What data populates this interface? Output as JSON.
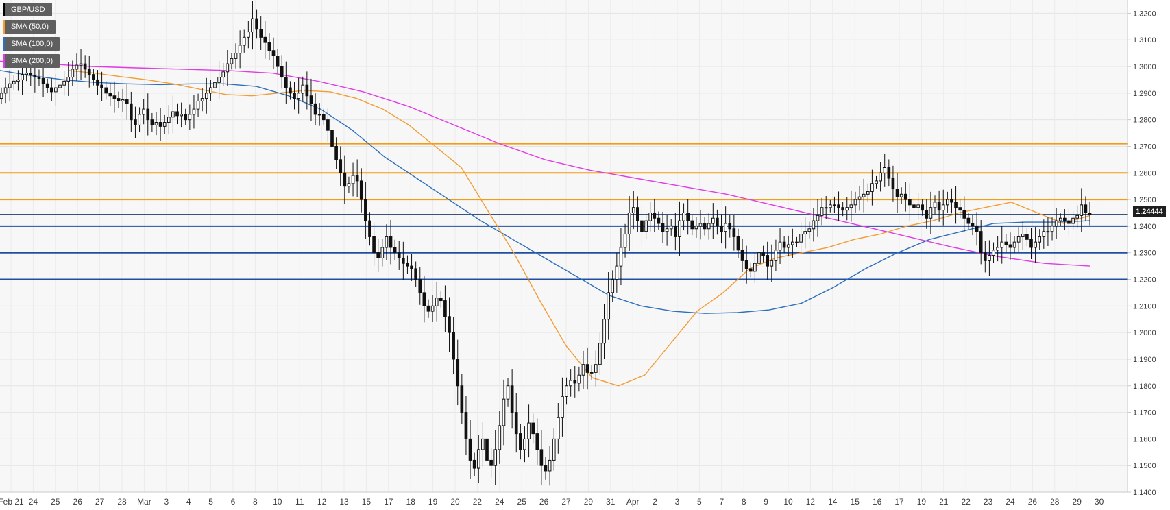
{
  "chart_data": {
    "type": "candlestick",
    "symbol": "GBP/USD",
    "ylim": [
      1.14,
      1.325
    ],
    "y_ticks": [
      "1.3200",
      "1.3100",
      "1.3000",
      "1.2900",
      "1.2800",
      "1.2700",
      "1.2600",
      "1.2500",
      "1.2400",
      "1.2300",
      "1.2200",
      "1.2100",
      "1.2000",
      "1.1900",
      "1.1800",
      "1.1700",
      "1.1600",
      "1.1500",
      "1.1400"
    ],
    "x_ticks": [
      "Feb 21",
      "24",
      "25",
      "26",
      "27",
      "28",
      "Mar",
      "3",
      "4",
      "5",
      "6",
      "8",
      "10",
      "11",
      "12",
      "13",
      "15",
      "17",
      "18",
      "19",
      "20",
      "22",
      "24",
      "25",
      "26",
      "27",
      "29",
      "31",
      "Apr",
      "2",
      "3",
      "5",
      "7",
      "8",
      "9",
      "10",
      "12",
      "14",
      "15",
      "16",
      "17",
      "19",
      "21",
      "22",
      "23",
      "24",
      "26",
      "28",
      "29",
      "30"
    ],
    "grid": true,
    "last_price": "1.24444",
    "legend": [
      {
        "label": "GBP/USD",
        "color": "#000000"
      },
      {
        "label": "SMA (50,0)",
        "color": "#f39c33"
      },
      {
        "label": "SMA (100,0)",
        "color": "#2f6fba"
      },
      {
        "label": "SMA (200,0)",
        "color": "#e03be6"
      }
    ],
    "horizontal_levels": [
      {
        "value": 1.271,
        "color": "#f39c12"
      },
      {
        "value": 1.26,
        "color": "#f39c12"
      },
      {
        "value": 1.25,
        "color": "#f39c12"
      },
      {
        "value": 1.24,
        "color": "#1f4fa3"
      },
      {
        "value": 1.23,
        "color": "#1f4fa3"
      },
      {
        "value": 1.22,
        "color": "#1f4fa3"
      }
    ],
    "closes": [
      1.29,
      1.292,
      1.2935,
      1.2945,
      1.295,
      1.297,
      1.2975,
      1.2968,
      1.296,
      1.2955,
      1.2935,
      1.292,
      1.2905,
      1.292,
      1.293,
      1.2945,
      1.296,
      1.299,
      1.3005,
      1.301,
      1.299,
      1.297,
      1.295,
      1.293,
      1.292,
      1.29,
      1.289,
      1.288,
      1.287,
      1.2875,
      1.286,
      1.28,
      1.278,
      1.282,
      1.284,
      1.28,
      1.278,
      1.279,
      1.2775,
      1.279,
      1.281,
      1.283,
      1.2815,
      1.282,
      1.28,
      1.282,
      1.284,
      1.287,
      1.288,
      1.29,
      1.292,
      1.294,
      1.296,
      1.298,
      1.301,
      1.303,
      1.305,
      1.308,
      1.311,
      1.313,
      1.318,
      1.314,
      1.311,
      1.309,
      1.306,
      1.304,
      1.3,
      1.296,
      1.292,
      1.29,
      1.288,
      1.29,
      1.293,
      1.289,
      1.286,
      1.282,
      1.282,
      1.28,
      1.276,
      1.27,
      1.265,
      1.26,
      1.255,
      1.256,
      1.259,
      1.257,
      1.25,
      1.242,
      1.236,
      1.23,
      1.228,
      1.232,
      1.236,
      1.232,
      1.23,
      1.228,
      1.226,
      1.225,
      1.224,
      1.22,
      1.215,
      1.21,
      1.208,
      1.21,
      1.213,
      1.212,
      1.206,
      1.2,
      1.19,
      1.18,
      1.17,
      1.16,
      1.152,
      1.149,
      1.156,
      1.16,
      1.152,
      1.15,
      1.156,
      1.165,
      1.175,
      1.18,
      1.17,
      1.162,
      1.156,
      1.16,
      1.166,
      1.162,
      1.156,
      1.15,
      1.148,
      1.152,
      1.16,
      1.168,
      1.176,
      1.18,
      1.182,
      1.181,
      1.184,
      1.188,
      1.185,
      1.185,
      1.188,
      1.196,
      1.205,
      1.215,
      1.22,
      1.225,
      1.232,
      1.237,
      1.245,
      1.247,
      1.242,
      1.238,
      1.242,
      1.245,
      1.243,
      1.241,
      1.238,
      1.239,
      1.24,
      1.236,
      1.242,
      1.245,
      1.242,
      1.239,
      1.24,
      1.241,
      1.239,
      1.241,
      1.243,
      1.24,
      1.238,
      1.241,
      1.239,
      1.236,
      1.231,
      1.227,
      1.224,
      1.223,
      1.226,
      1.23,
      1.229,
      1.225,
      1.227,
      1.231,
      1.234,
      1.232,
      1.233,
      1.234,
      1.234,
      1.237,
      1.238,
      1.239,
      1.242,
      1.244,
      1.247,
      1.247,
      1.248,
      1.248,
      1.247,
      1.246,
      1.247,
      1.248,
      1.25,
      1.251,
      1.252,
      1.253,
      1.256,
      1.257,
      1.26,
      1.262,
      1.258,
      1.254,
      1.251,
      1.252,
      1.25,
      1.248,
      1.247,
      1.248,
      1.246,
      1.243,
      1.247,
      1.249,
      1.246,
      1.248,
      1.25,
      1.249,
      1.247,
      1.246,
      1.243,
      1.241,
      1.24,
      1.238,
      1.23,
      1.227,
      1.229,
      1.231,
      1.232,
      1.234,
      1.233,
      1.232,
      1.234,
      1.236,
      1.237,
      1.235,
      1.232,
      1.234,
      1.236,
      1.238,
      1.238,
      1.24,
      1.242,
      1.243,
      1.242,
      1.241,
      1.243,
      1.244,
      1.248,
      1.245,
      1.2444
    ],
    "sma50": [
      1.2985,
      1.2975,
      1.2962,
      1.295,
      1.2935,
      1.2915,
      1.2895,
      1.289,
      1.29,
      1.291,
      1.2905,
      1.288,
      1.284,
      1.278,
      1.27,
      1.262,
      1.246,
      1.23,
      1.212,
      1.195,
      1.183,
      1.18,
      1.184,
      1.196,
      1.208,
      1.215,
      1.224,
      1.228,
      1.23,
      1.232,
      1.235,
      1.237,
      1.24,
      1.242,
      1.245,
      1.247,
      1.249,
      1.245,
      1.241,
      1.244
    ],
    "sma100": [
      1.2985,
      1.2965,
      1.295,
      1.294,
      1.2935,
      1.2932,
      1.2935,
      1.2935,
      1.2925,
      1.289,
      1.284,
      1.276,
      1.266,
      1.258,
      1.25,
      1.242,
      1.235,
      1.228,
      1.221,
      1.214,
      1.21,
      1.208,
      1.2072,
      1.2075,
      1.2085,
      1.211,
      1.217,
      1.224,
      1.23,
      1.235,
      1.238,
      1.241,
      1.2415,
      1.2415,
      1.242
    ],
    "sma200": [
      1.302,
      1.301,
      1.3,
      1.2995,
      1.299,
      1.2985,
      1.2975,
      1.2945,
      1.2905,
      1.285,
      1.278,
      1.271,
      1.265,
      1.261,
      1.258,
      1.255,
      1.252,
      1.248,
      1.244,
      1.24,
      1.236,
      1.232,
      1.2285,
      1.226,
      1.225
    ]
  }
}
